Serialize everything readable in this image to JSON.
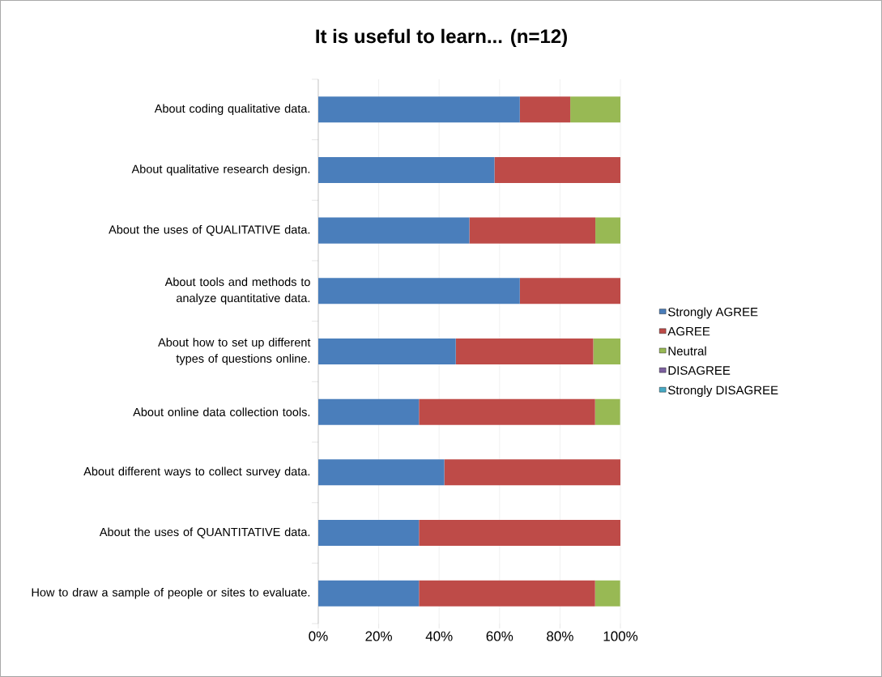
{
  "chart_data": {
    "type": "bar",
    "orientation": "horizontal",
    "stacked": true,
    "title": "It is useful to learn... (n=12)",
    "categories": [
      "About coding qualitative data.",
      "About qualitative research design.",
      "About the uses of QUALITATIVE data.",
      "About tools and methods to analyze quantitative data.",
      "About how to set up different types of questions online.",
      "About online data collection tools.",
      "About different ways to collect survey data.",
      "About the uses of QUANTITATIVE data.",
      "How to draw a sample of people or sites to evaluate."
    ],
    "series": [
      {
        "name": "Strongly AGREE",
        "color": "#4a7ebb",
        "values": [
          66.7,
          58.3,
          50,
          66.7,
          45.5,
          33.3,
          41.7,
          33.3,
          33.3
        ]
      },
      {
        "name": "AGREE",
        "color": "#be4b48",
        "values": [
          16.7,
          41.7,
          41.7,
          33.3,
          45.5,
          58.3,
          58.3,
          66.7,
          58.3
        ]
      },
      {
        "name": "Neutral",
        "color": "#98b954",
        "values": [
          16.7,
          0,
          8.3,
          0,
          9.1,
          8.3,
          0,
          0,
          8.3
        ]
      },
      {
        "name": "DISAGREE",
        "color": "#7d60a0",
        "values": [
          0,
          0,
          0,
          0,
          0,
          0,
          0,
          0,
          0
        ]
      },
      {
        "name": "Strongly DISAGREE",
        "color": "#46aac5",
        "values": [
          0,
          0,
          0,
          0,
          0,
          0,
          0,
          0,
          0
        ]
      }
    ],
    "xlim": [
      0,
      100
    ],
    "xticks": [
      {
        "value": 0,
        "label": "0%"
      },
      {
        "value": 20,
        "label": "20%"
      },
      {
        "value": 40,
        "label": "40%"
      },
      {
        "value": 60,
        "label": "60%"
      },
      {
        "value": 80,
        "label": "80%"
      },
      {
        "value": 100,
        "label": "100%"
      }
    ],
    "grid": "x",
    "legend": "right"
  }
}
